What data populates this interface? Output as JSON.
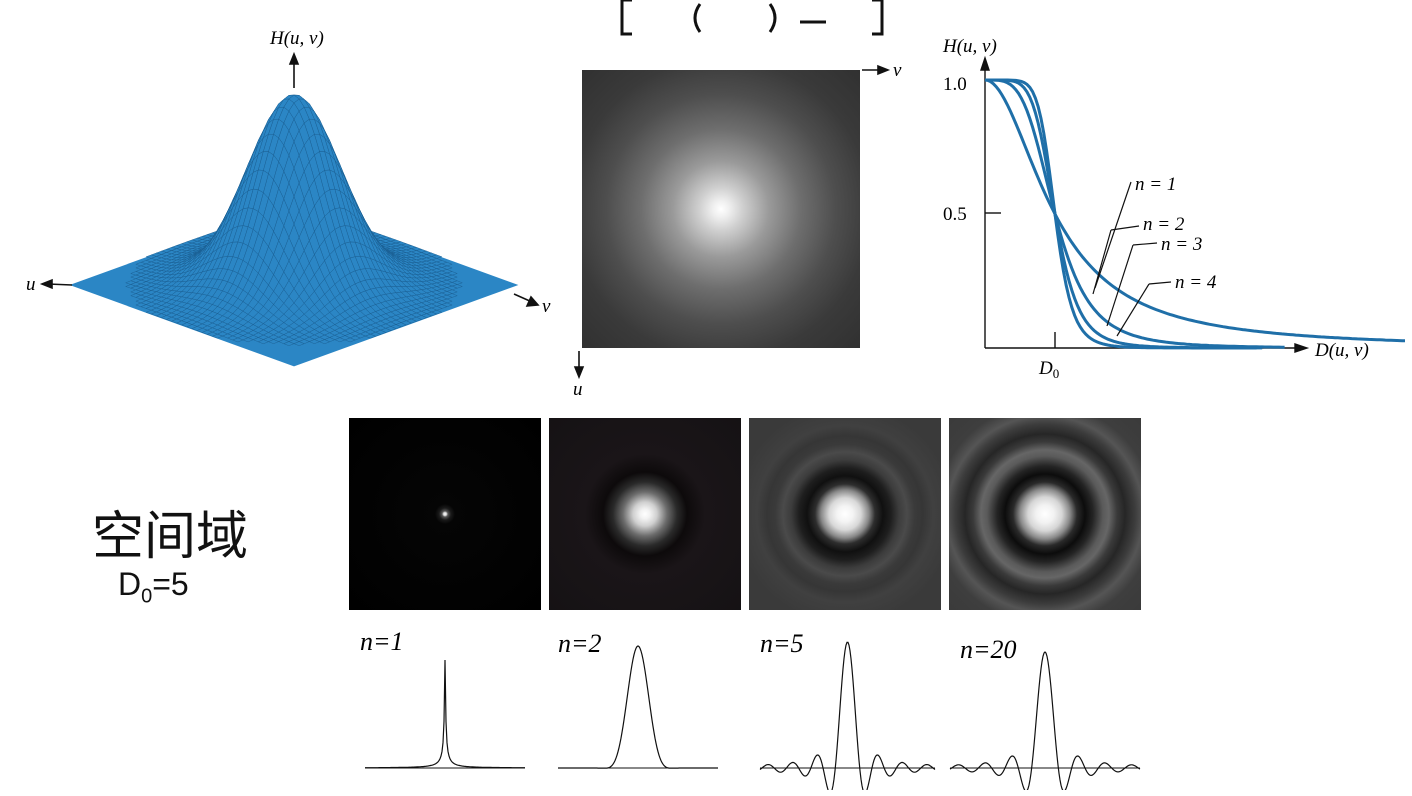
{
  "surface_plot": {
    "title": "H(u, v)",
    "axis_u": "u",
    "axis_v": "v",
    "surface_color": "#2b86c5"
  },
  "filter_image": {
    "axis_u": "u",
    "axis_v": "v"
  },
  "cross_section": {
    "ylabel": "H(u, v)",
    "xlabel": "D(u, v)",
    "tick_y_top": "1.0",
    "tick_y_mid": "0.5",
    "tick_x": "D",
    "tick_x_sub": "0",
    "curve_color": "#1f6fa8",
    "curves": [
      {
        "label": "n = 1"
      },
      {
        "label": "n = 2"
      },
      {
        "label": "n = 3"
      },
      {
        "label": "n = 4"
      }
    ]
  },
  "spatial": {
    "title": "空间域",
    "d0_main": "D",
    "d0_sub": "0",
    "d0_value": "=5",
    "panels": [
      {
        "label": "n=1"
      },
      {
        "label": "n=2"
      },
      {
        "label": "n=5"
      },
      {
        "label": "n=20"
      }
    ]
  },
  "chart_data": {
    "type": "line",
    "xlabel": "D(u, v)",
    "ylabel": "H(u, v)",
    "ylim": [
      0,
      1.0
    ],
    "yticks": [
      0.5,
      1.0
    ],
    "xticks_label": "D0",
    "series_note_source": "labels printed as n = 1, n = 2, n = 3, n = 4",
    "series": [
      {
        "name": "n = 1",
        "x_over_D0": [
          0,
          0.25,
          0.5,
          0.75,
          1,
          1.5,
          2,
          3,
          4,
          6
        ],
        "values": [
          1.0,
          0.94,
          0.8,
          0.64,
          0.5,
          0.31,
          0.2,
          0.1,
          0.06,
          0.03
        ]
      },
      {
        "name": "n = 2",
        "x_over_D0": [
          0,
          0.25,
          0.5,
          0.75,
          1,
          1.5,
          2,
          3,
          4,
          6
        ],
        "values": [
          1.0,
          1.0,
          0.94,
          0.76,
          0.5,
          0.17,
          0.06,
          0.01,
          0.0,
          0.0
        ]
      },
      {
        "name": "n = 3",
        "x_over_D0": [
          0,
          0.25,
          0.5,
          0.75,
          1,
          1.5,
          2,
          3,
          4,
          6
        ],
        "values": [
          1.0,
          1.0,
          0.98,
          0.85,
          0.5,
          0.08,
          0.02,
          0.0,
          0.0,
          0.0
        ]
      },
      {
        "name": "n = 4",
        "x_over_D0": [
          0,
          0.25,
          0.5,
          0.75,
          1,
          1.5,
          2,
          3,
          4,
          6
        ],
        "values": [
          1.0,
          1.0,
          1.0,
          0.91,
          0.5,
          0.04,
          0.0,
          0.0,
          0.0,
          0.0
        ]
      }
    ]
  }
}
